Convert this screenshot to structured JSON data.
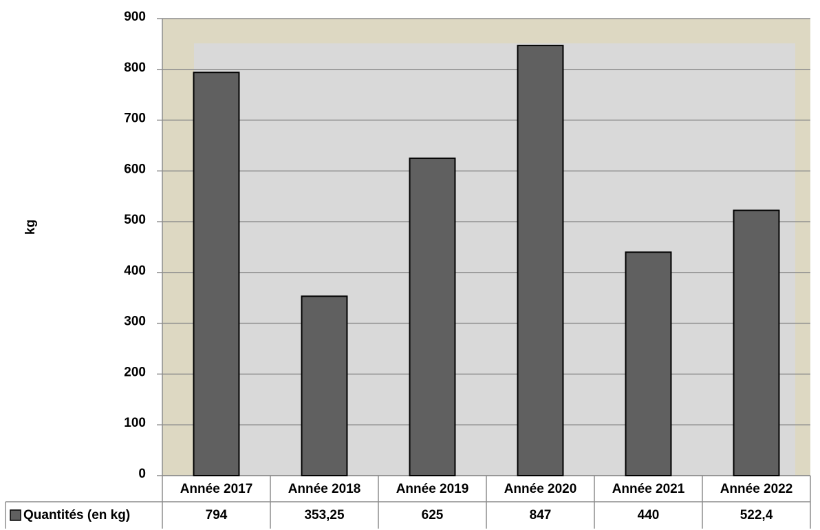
{
  "chart_data": {
    "type": "bar",
    "y_label": "kg",
    "categories": [
      "Année 2017",
      "Année 2018",
      "Année 2019",
      "Année 2020",
      "Année 2021",
      "Année 2022"
    ],
    "series": [
      {
        "name": "Quantités (en kg)",
        "color": "#606060",
        "values": [
          794,
          353.25,
          625,
          847,
          440,
          522.4
        ],
        "value_labels": [
          "794",
          "353,25",
          "625",
          "847",
          "440",
          "522,4"
        ]
      }
    ],
    "ylim": [
      0,
      900
    ],
    "yticks": [
      0,
      100,
      200,
      300,
      400,
      500,
      600,
      700,
      800,
      900
    ],
    "grid": true
  }
}
